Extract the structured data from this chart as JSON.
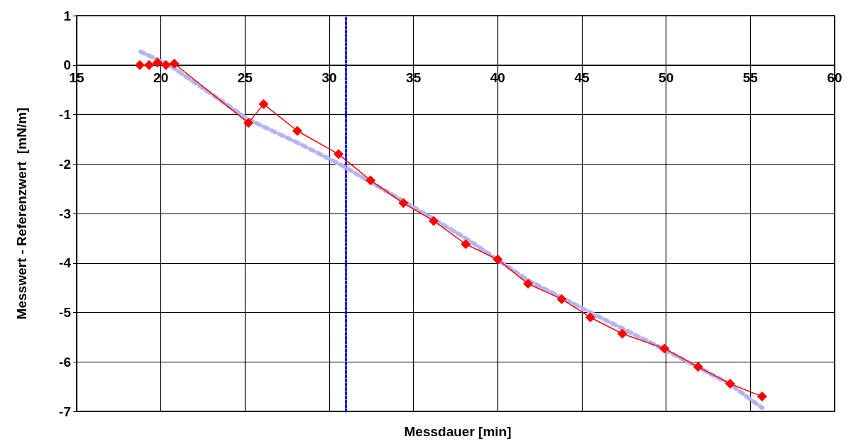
{
  "chart_data": {
    "type": "line",
    "xlabel": "Messdauer [min]",
    "ylabel": "Messwert - Referenzwert  [mN/m]",
    "xlim": [
      15,
      60
    ],
    "xticks": [
      15,
      20,
      25,
      30,
      35,
      40,
      45,
      50,
      55,
      60
    ],
    "ylim": [
      -7,
      1
    ],
    "yticks": [
      -7,
      -6,
      -5,
      -4,
      -3,
      -2,
      -1,
      0,
      1
    ],
    "grid": true,
    "series": [
      {
        "color": "#ff0000",
        "marker": "diamond",
        "x": [
          18.75,
          19.3,
          19.8,
          20.3,
          20.8,
          25.2,
          26.1,
          28.1,
          30.55,
          32.45,
          34.4,
          36.2,
          38.1,
          40.0,
          41.8,
          43.8,
          45.5,
          47.4,
          49.9,
          51.9,
          53.8,
          55.7
        ],
        "values": [
          0,
          0,
          0.05,
          0,
          0.03,
          -1.17,
          -0.79,
          -1.33,
          -1.8,
          -2.33,
          -2.79,
          -3.15,
          -3.62,
          -3.93,
          -4.42,
          -4.73,
          -5.1,
          -5.43,
          -5.73,
          -6.1,
          -6.44,
          -6.7
        ]
      },
      {
        "color": "#b4b4f0",
        "marker": "none",
        "line_style": "dotted",
        "x": [
          18.8,
          20.5,
          25.2,
          28,
          30.6,
          34.4,
          38.1,
          41.8,
          45.5,
          49.9,
          53.8,
          55.7
        ],
        "values": [
          0.27,
          0,
          -1.1,
          -1.55,
          -2.0,
          -2.75,
          -3.5,
          -4.35,
          -5.0,
          -5.75,
          -6.45,
          -6.93
        ]
      }
    ],
    "ref_lines": [
      {
        "axis": "x",
        "value": 31,
        "color": "#0000ff",
        "line_style": "dotted"
      }
    ]
  }
}
